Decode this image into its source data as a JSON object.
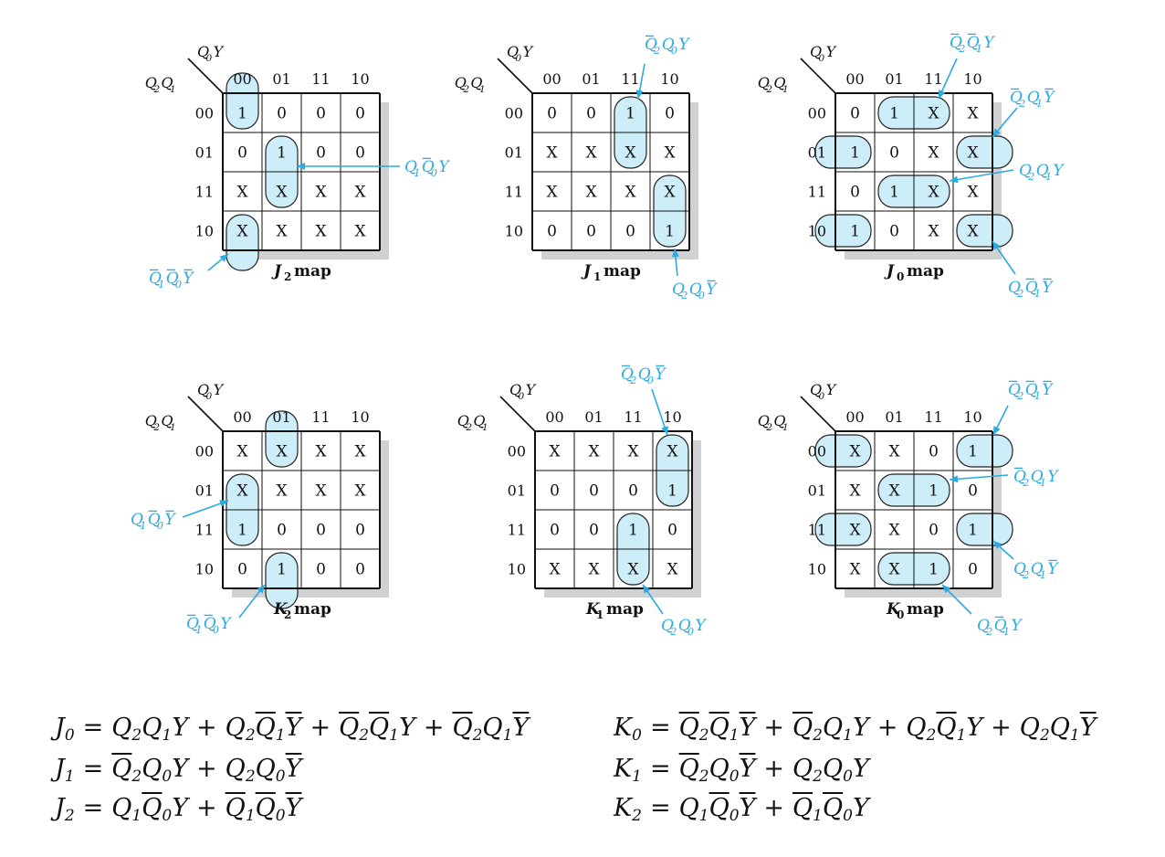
{
  "colors": {
    "accent": "#2aaae2",
    "group_fill": "#cdeef9",
    "shadow": "#cfd1d3",
    "grid": "#111111"
  },
  "kmap_axes": {
    "rows_var": "Q2Q1",
    "cols_var": "Q0Y"
  },
  "column_labels": [
    "00",
    "01",
    "11",
    "10"
  ],
  "row_labels": [
    "00",
    "01",
    "11",
    "10"
  ],
  "maps": [
    {
      "id": "J2",
      "title_letter": "J",
      "title_sub": "2",
      "title_suffix": "map",
      "cells": [
        [
          "1",
          "0",
          "0",
          "0"
        ],
        [
          "0",
          "1",
          "0",
          "0"
        ],
        [
          "X",
          "X",
          "X",
          "X"
        ],
        [
          "X",
          "X",
          "X",
          "X"
        ]
      ],
      "groups": [
        {
          "cells": [
            [
              0,
              0
            ],
            [
              3,
              0
            ]
          ],
          "wrap": "vertical",
          "term": "Q̄1Q̄0Ȳ"
        },
        {
          "cells": [
            [
              1,
              1
            ],
            [
              2,
              1
            ]
          ],
          "wrap": "none",
          "term": "Q1Q̄0Y"
        }
      ]
    },
    {
      "id": "J1",
      "title_letter": "J",
      "title_sub": "1",
      "title_suffix": "map",
      "cells": [
        [
          "0",
          "0",
          "1",
          "0"
        ],
        [
          "X",
          "X",
          "X",
          "X"
        ],
        [
          "X",
          "X",
          "X",
          "X"
        ],
        [
          "0",
          "0",
          "0",
          "1"
        ]
      ],
      "groups": [
        {
          "cells": [
            [
              0,
              2
            ],
            [
              1,
              2
            ]
          ],
          "wrap": "none",
          "term": "Q̄2Q0Y"
        },
        {
          "cells": [
            [
              2,
              3
            ],
            [
              3,
              3
            ]
          ],
          "wrap": "none",
          "term": "Q2Q0Ȳ"
        }
      ]
    },
    {
      "id": "J0",
      "title_letter": "J",
      "title_sub": "0",
      "title_suffix": "map",
      "cells": [
        [
          "0",
          "1",
          "X",
          "X"
        ],
        [
          "1",
          "0",
          "X",
          "X"
        ],
        [
          "0",
          "1",
          "X",
          "X"
        ],
        [
          "1",
          "0",
          "X",
          "X"
        ]
      ],
      "groups": [
        {
          "cells": [
            [
              0,
              1
            ],
            [
              0,
              2
            ]
          ],
          "wrap": "none",
          "term": "Q̄2Q̄1Y"
        },
        {
          "cells": [
            [
              1,
              0
            ],
            [
              1,
              3
            ]
          ],
          "wrap": "horizontal",
          "term": "Q̄2Q1Ȳ"
        },
        {
          "cells": [
            [
              2,
              1
            ],
            [
              2,
              2
            ]
          ],
          "wrap": "none",
          "term": "Q2Q1Y"
        },
        {
          "cells": [
            [
              3,
              0
            ],
            [
              3,
              3
            ]
          ],
          "wrap": "horizontal",
          "term": "Q2Q̄1Ȳ"
        }
      ]
    },
    {
      "id": "K2",
      "title_letter": "K",
      "title_sub": "2",
      "title_suffix": "map",
      "cells": [
        [
          "X",
          "X",
          "X",
          "X"
        ],
        [
          "X",
          "X",
          "X",
          "X"
        ],
        [
          "1",
          "0",
          "0",
          "0"
        ],
        [
          "0",
          "1",
          "0",
          "0"
        ]
      ],
      "groups": [
        {
          "cells": [
            [
              1,
              0
            ],
            [
              2,
              0
            ]
          ],
          "wrap": "none",
          "term": "Q1Q̄0Ȳ"
        },
        {
          "cells": [
            [
              3,
              1
            ],
            [
              0,
              1
            ]
          ],
          "wrap": "vertical",
          "term": "Q̄1Q̄0Y"
        }
      ]
    },
    {
      "id": "K1",
      "title_letter": "K",
      "title_sub": "1",
      "title_suffix": "map",
      "cells": [
        [
          "X",
          "X",
          "X",
          "X"
        ],
        [
          "0",
          "0",
          "0",
          "1"
        ],
        [
          "0",
          "0",
          "1",
          "0"
        ],
        [
          "X",
          "X",
          "X",
          "X"
        ]
      ],
      "groups": [
        {
          "cells": [
            [
              0,
              3
            ],
            [
              1,
              3
            ]
          ],
          "wrap": "none",
          "term": "Q̄2Q0Ȳ"
        },
        {
          "cells": [
            [
              2,
              2
            ],
            [
              3,
              2
            ]
          ],
          "wrap": "none",
          "term": "Q2Q0Y"
        }
      ]
    },
    {
      "id": "K0",
      "title_letter": "K",
      "title_sub": "0",
      "title_suffix": "map",
      "cells": [
        [
          "X",
          "X",
          "0",
          "1"
        ],
        [
          "X",
          "X",
          "1",
          "0"
        ],
        [
          "X",
          "X",
          "0",
          "1"
        ],
        [
          "X",
          "X",
          "1",
          "0"
        ]
      ],
      "groups": [
        {
          "cells": [
            [
              0,
              0
            ],
            [
              0,
              3
            ]
          ],
          "wrap": "horizontal",
          "term": "Q̄2Q̄1Ȳ"
        },
        {
          "cells": [
            [
              1,
              1
            ],
            [
              1,
              2
            ]
          ],
          "wrap": "none",
          "term": "Q̄2Q1Y"
        },
        {
          "cells": [
            [
              2,
              0
            ],
            [
              2,
              3
            ]
          ],
          "wrap": "horizontal",
          "term": "Q2Q1Ȳ"
        },
        {
          "cells": [
            [
              3,
              1
            ],
            [
              3,
              2
            ]
          ],
          "wrap": "none",
          "term": "Q2Q̄1Y"
        }
      ]
    }
  ],
  "equations": {
    "J0": "J0 = Q2Q1Y + Q2Q̄1Ȳ + Q̄2Q̄1Y + Q̄2Q1Ȳ",
    "J1": "J1 = Q̄2Q0Y + Q2Q0Ȳ",
    "J2": "J2 = Q1Q̄0Y + Q̄1Q̄0Ȳ",
    "K0": "K0 = Q̄2Q̄1Ȳ + Q̄2Q1Y + Q2Q̄1Y + Q2Q1Ȳ",
    "K1": "K1 = Q̄2Q0Ȳ + Q2Q0Y",
    "K2": "K2 = Q1Q̄0Ȳ + Q̄1Q̄0Y"
  }
}
